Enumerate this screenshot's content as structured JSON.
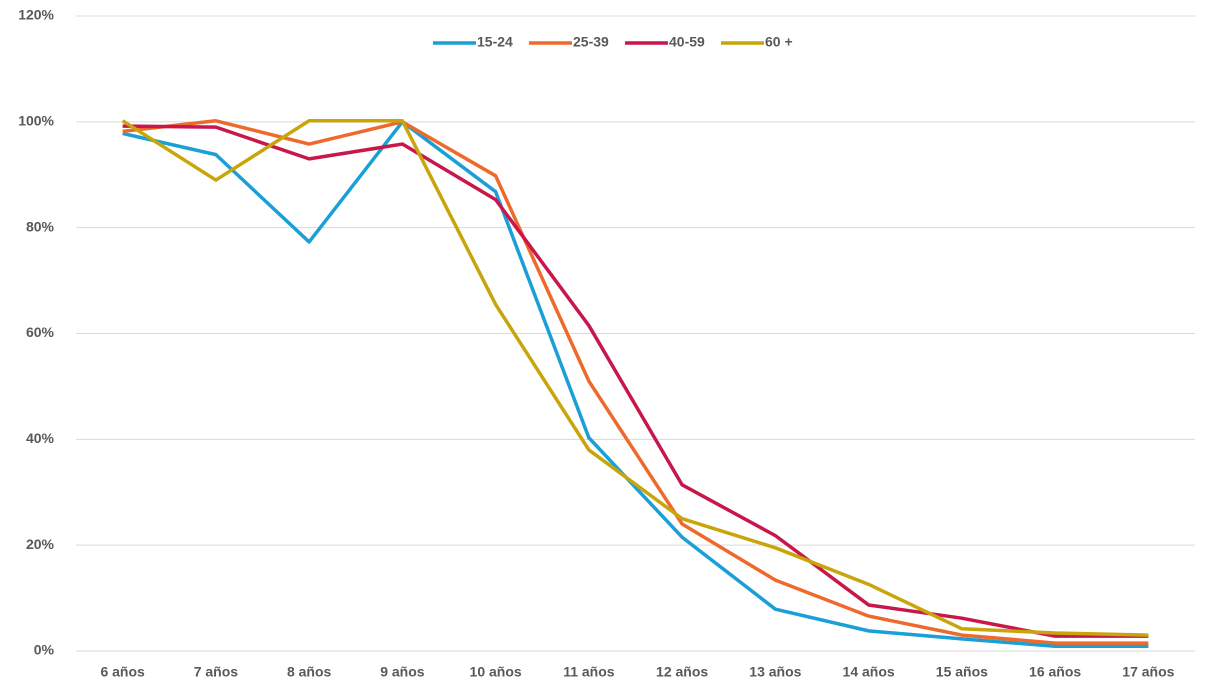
{
  "chart_data": {
    "type": "line",
    "categories": [
      "6 años",
      "7 años",
      "8 años",
      "9 años",
      "10 años",
      "11 años",
      "12 años",
      "13 años",
      "14 años",
      "15 años",
      "16 años",
      "17 años"
    ],
    "series": [
      {
        "name": "15-24",
        "color": "#1a9fd6",
        "values": [
          97.8,
          93.8,
          77.3,
          100,
          86.8,
          40.3,
          21.5,
          7.9,
          3.8,
          2.3,
          0.9,
          0.9
        ]
      },
      {
        "name": "25-39",
        "color": "#ee6a2c",
        "values": [
          98.2,
          100.2,
          95.8,
          100,
          89.8,
          51,
          24,
          13.4,
          6.6,
          3,
          1.5,
          1.5
        ]
      },
      {
        "name": "40-59",
        "color": "#c8174a",
        "values": [
          99.2,
          99,
          93,
          95.8,
          85.3,
          61.5,
          31.4,
          21.8,
          8.7,
          6.2,
          2.8,
          2.8
        ]
      },
      {
        "name": "60 +",
        "color": "#c8a50a",
        "values": [
          100.2,
          89,
          100.2,
          100.2,
          65.5,
          38,
          25,
          19.5,
          12.6,
          4.2,
          3.4,
          3
        ]
      }
    ],
    "ylim": [
      0,
      120
    ],
    "yticks": [
      {
        "value": 0,
        "label": "0%"
      },
      {
        "value": 20,
        "label": "20%"
      },
      {
        "value": 40,
        "label": "40%"
      },
      {
        "value": 60,
        "label": "60%"
      },
      {
        "value": 80,
        "label": "80%"
      },
      {
        "value": 100,
        "label": "100%"
      },
      {
        "value": 120,
        "label": "120%"
      }
    ],
    "grid": true,
    "legend": "top"
  }
}
